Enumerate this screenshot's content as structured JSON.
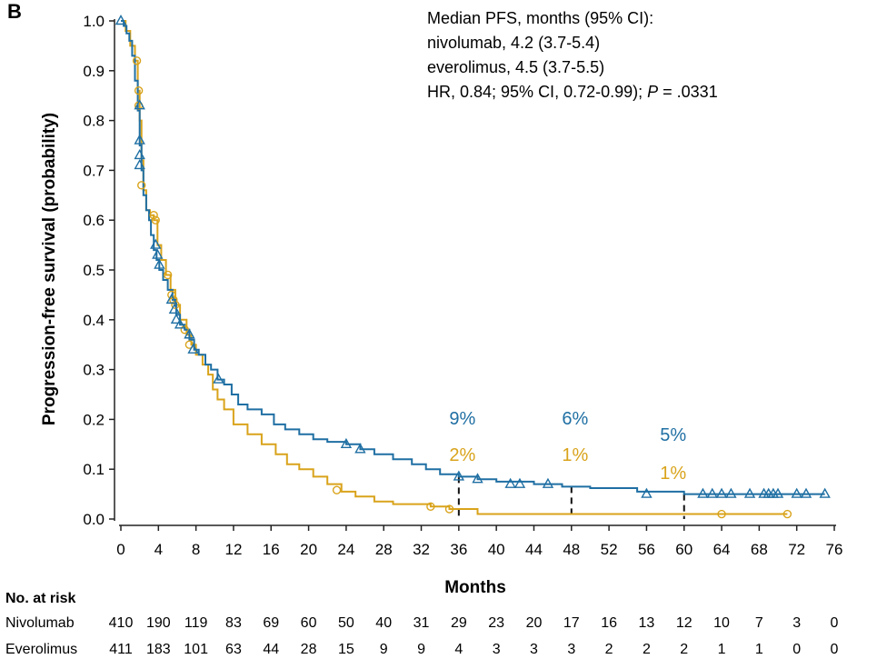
{
  "panel_label": "B",
  "chart_data": {
    "type": "line",
    "subtype": "kaplan-meier",
    "title": "",
    "xlabel": "Months",
    "ylabel": "Progression-free survival (probability)",
    "xlim": [
      0,
      76
    ],
    "ylim": [
      0,
      1.0
    ],
    "x_ticks": [
      "0",
      "4",
      "8",
      "12",
      "16",
      "20",
      "24",
      "28",
      "32",
      "36",
      "40",
      "44",
      "48",
      "52",
      "56",
      "60",
      "64",
      "68",
      "72",
      "76"
    ],
    "y_ticks": [
      "0.0",
      "0.1",
      "0.2",
      "0.3",
      "0.4",
      "0.5",
      "0.6",
      "0.7",
      "0.8",
      "0.9",
      "1.0"
    ],
    "annotation": {
      "line1": "Median PFS, months (95% CI):",
      "line2": "nivolumab, 4.2 (3.7-5.4)",
      "line3": "everolimus, 4.5 (3.7-5.5)",
      "line4_pre": "HR, 0.84; 95% CI, 0.72-0.99); ",
      "line4_p": "P",
      "line4_post": " = .0331"
    },
    "landmarks": [
      {
        "month": 36,
        "nivolumab_label": "9%",
        "everolimus_label": "2%"
      },
      {
        "month": 48,
        "nivolumab_label": "6%",
        "everolimus_label": "1%"
      },
      {
        "month": 60,
        "nivolumab_label": "5%",
        "everolimus_label": "1%"
      }
    ],
    "series": [
      {
        "name": "Nivolumab",
        "color": "#1f6fa3",
        "marker": "triangle",
        "points": [
          [
            0,
            1.0
          ],
          [
            0.3,
            0.99
          ],
          [
            0.6,
            0.975
          ],
          [
            0.9,
            0.96
          ],
          [
            1.2,
            0.93
          ],
          [
            1.5,
            0.88
          ],
          [
            1.8,
            0.82
          ],
          [
            2.0,
            0.75
          ],
          [
            2.2,
            0.7
          ],
          [
            2.4,
            0.65
          ],
          [
            2.7,
            0.62
          ],
          [
            3.0,
            0.6
          ],
          [
            3.2,
            0.57
          ],
          [
            3.5,
            0.54
          ],
          [
            3.8,
            0.52
          ],
          [
            4.1,
            0.5
          ],
          [
            4.5,
            0.48
          ],
          [
            5.0,
            0.46
          ],
          [
            5.5,
            0.44
          ],
          [
            5.9,
            0.41
          ],
          [
            6.3,
            0.39
          ],
          [
            6.8,
            0.38
          ],
          [
            7.3,
            0.36
          ],
          [
            7.8,
            0.34
          ],
          [
            8.3,
            0.33
          ],
          [
            9.0,
            0.31
          ],
          [
            9.6,
            0.3
          ],
          [
            10.3,
            0.28
          ],
          [
            11.0,
            0.27
          ],
          [
            11.8,
            0.25
          ],
          [
            12.5,
            0.23
          ],
          [
            13.5,
            0.22
          ],
          [
            15.0,
            0.21
          ],
          [
            16.3,
            0.19
          ],
          [
            17.5,
            0.18
          ],
          [
            19.0,
            0.17
          ],
          [
            20.5,
            0.16
          ],
          [
            22.0,
            0.155
          ],
          [
            24.0,
            0.15
          ],
          [
            25.5,
            0.14
          ],
          [
            27.0,
            0.13
          ],
          [
            29.0,
            0.12
          ],
          [
            31.0,
            0.11
          ],
          [
            32.5,
            0.1
          ],
          [
            34.0,
            0.09
          ],
          [
            36.0,
            0.085
          ],
          [
            38.0,
            0.08
          ],
          [
            40.0,
            0.075
          ],
          [
            44.0,
            0.07
          ],
          [
            47.0,
            0.065
          ],
          [
            50.0,
            0.062
          ],
          [
            55.0,
            0.055
          ],
          [
            60.0,
            0.05
          ],
          [
            66.0,
            0.05
          ],
          [
            75.0,
            0.05
          ]
        ],
        "censors": [
          [
            0,
            1.0
          ],
          [
            2.0,
            0.83
          ],
          [
            2.0,
            0.76
          ],
          [
            2.0,
            0.73
          ],
          [
            2.0,
            0.71
          ],
          [
            3.7,
            0.55
          ],
          [
            3.9,
            0.53
          ],
          [
            4.1,
            0.51
          ],
          [
            5.4,
            0.44
          ],
          [
            5.7,
            0.42
          ],
          [
            5.9,
            0.4
          ],
          [
            6.3,
            0.39
          ],
          [
            7.3,
            0.37
          ],
          [
            7.7,
            0.34
          ],
          [
            10.4,
            0.28
          ],
          [
            24.0,
            0.15
          ],
          [
            25.5,
            0.14
          ],
          [
            36.0,
            0.085
          ],
          [
            38.0,
            0.08
          ],
          [
            41.5,
            0.07
          ],
          [
            42.5,
            0.07
          ],
          [
            45.5,
            0.07
          ],
          [
            56.0,
            0.05
          ],
          [
            62.0,
            0.05
          ],
          [
            63.0,
            0.05
          ],
          [
            64.0,
            0.05
          ],
          [
            65.0,
            0.05
          ],
          [
            67.0,
            0.05
          ],
          [
            68.5,
            0.05
          ],
          [
            69.0,
            0.05
          ],
          [
            69.5,
            0.05
          ],
          [
            70.0,
            0.05
          ],
          [
            72.0,
            0.05
          ],
          [
            73.0,
            0.05
          ],
          [
            75.0,
            0.05
          ]
        ]
      },
      {
        "name": "Everolimus",
        "color": "#d9a31b",
        "marker": "circle",
        "points": [
          [
            0,
            1.0
          ],
          [
            0.5,
            0.98
          ],
          [
            1.0,
            0.95
          ],
          [
            1.5,
            0.92
          ],
          [
            1.8,
            0.86
          ],
          [
            2.0,
            0.8
          ],
          [
            2.2,
            0.72
          ],
          [
            2.4,
            0.66
          ],
          [
            2.7,
            0.62
          ],
          [
            3.1,
            0.61
          ],
          [
            3.5,
            0.6
          ],
          [
            3.9,
            0.55
          ],
          [
            4.3,
            0.52
          ],
          [
            4.8,
            0.49
          ],
          [
            5.3,
            0.46
          ],
          [
            5.8,
            0.43
          ],
          [
            6.3,
            0.4
          ],
          [
            7.0,
            0.37
          ],
          [
            7.5,
            0.35
          ],
          [
            8.0,
            0.33
          ],
          [
            8.7,
            0.31
          ],
          [
            9.3,
            0.29
          ],
          [
            9.8,
            0.26
          ],
          [
            10.3,
            0.24
          ],
          [
            11.0,
            0.22
          ],
          [
            12.0,
            0.19
          ],
          [
            13.5,
            0.17
          ],
          [
            15.0,
            0.15
          ],
          [
            16.5,
            0.13
          ],
          [
            17.7,
            0.11
          ],
          [
            19.0,
            0.1
          ],
          [
            20.5,
            0.085
          ],
          [
            22.0,
            0.07
          ],
          [
            23.5,
            0.055
          ],
          [
            25.0,
            0.045
          ],
          [
            27.0,
            0.035
          ],
          [
            29.0,
            0.03
          ],
          [
            33.0,
            0.025
          ],
          [
            35.0,
            0.02
          ],
          [
            38.0,
            0.01
          ],
          [
            64.0,
            0.01
          ],
          [
            71.0,
            0.01
          ]
        ],
        "censors": [
          [
            1.7,
            0.92
          ],
          [
            1.9,
            0.86
          ],
          [
            1.9,
            0.83
          ],
          [
            2.2,
            0.67
          ],
          [
            3.5,
            0.61
          ],
          [
            3.7,
            0.6
          ],
          [
            5.0,
            0.49
          ],
          [
            5.4,
            0.45
          ],
          [
            5.6,
            0.44
          ],
          [
            5.8,
            0.43
          ],
          [
            6.8,
            0.38
          ],
          [
            7.3,
            0.35
          ],
          [
            23.0,
            0.058
          ],
          [
            33.0,
            0.025
          ],
          [
            35.0,
            0.02
          ],
          [
            64.0,
            0.01
          ],
          [
            71.0,
            0.01
          ]
        ]
      }
    ],
    "risk_table": {
      "header": "No. at risk",
      "times": [
        0,
        4,
        8,
        12,
        16,
        20,
        24,
        28,
        32,
        36,
        40,
        44,
        48,
        52,
        56,
        60,
        64,
        68,
        72,
        76
      ],
      "rows": [
        {
          "label": "Nivolumab",
          "values": [
            "410",
            "190",
            "119",
            "83",
            "69",
            "60",
            "50",
            "40",
            "31",
            "29",
            "23",
            "20",
            "17",
            "16",
            "13",
            "12",
            "10",
            "7",
            "3",
            "0"
          ]
        },
        {
          "label": "Everolimus",
          "values": [
            "411",
            "183",
            "101",
            "63",
            "44",
            "28",
            "15",
            "9",
            "9",
            "4",
            "3",
            "3",
            "3",
            "2",
            "2",
            "2",
            "1",
            "1",
            "0",
            "0"
          ]
        }
      ]
    }
  }
}
